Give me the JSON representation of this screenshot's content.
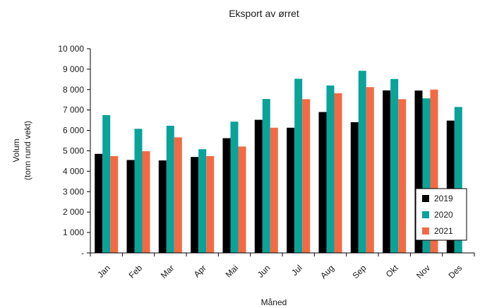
{
  "chart_data": {
    "type": "bar",
    "title": "Eksport av ørret",
    "xlabel": "Måned",
    "ylabel": "Volum",
    "ylabel_sub": "(tonn rund vekt)",
    "ylim": [
      0,
      10000
    ],
    "yticks": [
      0,
      1000,
      2000,
      3000,
      4000,
      5000,
      6000,
      7000,
      8000,
      9000,
      10000
    ],
    "ytick_labels": [
      "-",
      "1 000",
      "2 000",
      "3 000",
      "4 000",
      "5 000",
      "6 000",
      "7 000",
      "8 000",
      "9 000",
      "10 000"
    ],
    "grid": false,
    "legend_position": "bottom-right",
    "categories": [
      "Jan",
      "Feb",
      "Mar",
      "Apr",
      "Mai",
      "Jun",
      "Jul",
      "Aug",
      "Sep",
      "Okt",
      "Nov",
      "Des"
    ],
    "series": [
      {
        "name": "2019",
        "color": "#000000",
        "values": [
          4850,
          4550,
          4530,
          4700,
          5620,
          6520,
          6130,
          6900,
          6400,
          7960,
          7950,
          6480
        ]
      },
      {
        "name": "2020",
        "color": "#0aa39a",
        "values": [
          6750,
          6080,
          6230,
          5080,
          6430,
          7540,
          8530,
          8200,
          8920,
          8520,
          7570,
          7150
        ]
      },
      {
        "name": "2021",
        "color": "#f26a45",
        "values": [
          4740,
          4980,
          5660,
          4740,
          5210,
          6130,
          7530,
          7820,
          8120,
          7530,
          8000,
          null
        ]
      }
    ]
  }
}
